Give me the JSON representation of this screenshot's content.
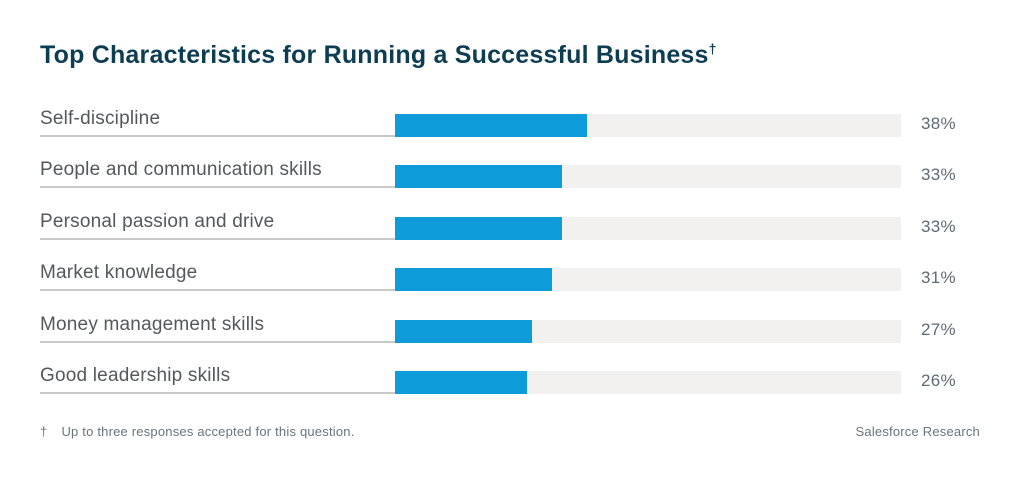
{
  "title": {
    "text": "Top Characteristics for Running a Successful Business",
    "dagger": "†"
  },
  "chart_data": {
    "type": "bar",
    "orientation": "horizontal",
    "title": "Top Characteristics for Running a Successful Business†",
    "categories": [
      "Self-discipline",
      "People and communication skills",
      "Personal passion and drive",
      "Market knowledge",
      "Money management skills",
      "Good leadership skills"
    ],
    "values": [
      38,
      33,
      33,
      31,
      27,
      26
    ],
    "value_suffix": "%",
    "xlim": [
      0,
      100
    ],
    "grid": false,
    "legend": false,
    "bar_color": "#0d9cd9",
    "track_color": "#f2f1ef"
  },
  "footer": {
    "dagger": "†",
    "note": "Up to three responses accepted for this question.",
    "source": "Salesforce Research"
  },
  "colors": {
    "accent": "#0d9cd9",
    "track": "#f2f1ef",
    "title_text": "#0d3d52",
    "label_text": "#55585a",
    "percent_text": "#5d6b75",
    "underline": "#c9c9c9",
    "footer_text": "#66757e",
    "background": "#ffffff"
  }
}
